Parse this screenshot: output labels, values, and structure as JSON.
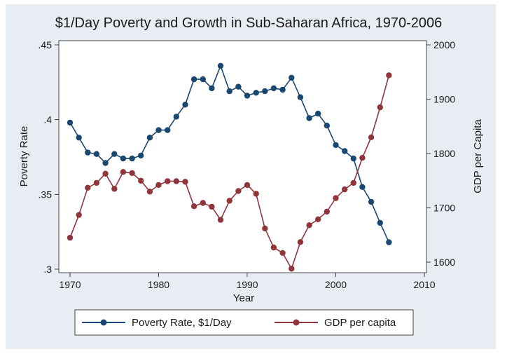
{
  "chart_data": {
    "type": "line",
    "title": "$1/Day Poverty and Growth in Sub-Saharan Africa, 1970-2006",
    "xlabel": "Year",
    "ylabel_left": "Poverty Rate",
    "ylabel_right": "GDP per Capita",
    "xlim": [
      1970,
      2010
    ],
    "ylim_left": [
      0.3,
      0.45
    ],
    "ylim_right": [
      1600,
      2000
    ],
    "x_ticks": [
      1970,
      1980,
      1990,
      2000,
      2010
    ],
    "y_left_ticks": [
      0.3,
      0.35,
      0.4,
      0.45
    ],
    "y_left_tick_labels": [
      ".3",
      ".35",
      ".4",
      ".45"
    ],
    "y_right_ticks": [
      1600,
      1700,
      1800,
      1900,
      2000
    ],
    "grid": false,
    "legend_placement": "bottom",
    "x": [
      1970,
      1971,
      1972,
      1973,
      1974,
      1975,
      1976,
      1977,
      1978,
      1979,
      1980,
      1981,
      1982,
      1983,
      1984,
      1985,
      1986,
      1987,
      1988,
      1989,
      1990,
      1991,
      1992,
      1993,
      1994,
      1995,
      1996,
      1997,
      1998,
      1999,
      2000,
      2001,
      2002,
      2003,
      2004,
      2005,
      2006
    ],
    "series": [
      {
        "name": "Poverty Rate, $1/Day",
        "axis": "left",
        "color": "#1a476f",
        "values": [
          0.398,
          0.388,
          0.378,
          0.377,
          0.371,
          0.377,
          0.374,
          0.374,
          0.376,
          0.388,
          0.393,
          0.393,
          0.402,
          0.41,
          0.427,
          0.427,
          0.421,
          0.436,
          0.419,
          0.422,
          0.416,
          0.418,
          0.419,
          0.421,
          0.42,
          0.428,
          0.415,
          0.401,
          0.404,
          0.396,
          0.383,
          0.379,
          0.374,
          0.355,
          0.345,
          0.331,
          0.318
        ]
      },
      {
        "name": "GDP per capita",
        "axis": "right",
        "color": "#90353b",
        "values": [
          1645,
          1687,
          1737,
          1746,
          1763,
          1735,
          1766,
          1764,
          1750,
          1730,
          1742,
          1749,
          1749,
          1748,
          1703,
          1709,
          1702,
          1678,
          1713,
          1731,
          1742,
          1726,
          1662,
          1627,
          1617,
          1588,
          1637,
          1668,
          1679,
          1693,
          1718,
          1734,
          1746,
          1792,
          1830,
          1885,
          1944
        ]
      }
    ]
  }
}
